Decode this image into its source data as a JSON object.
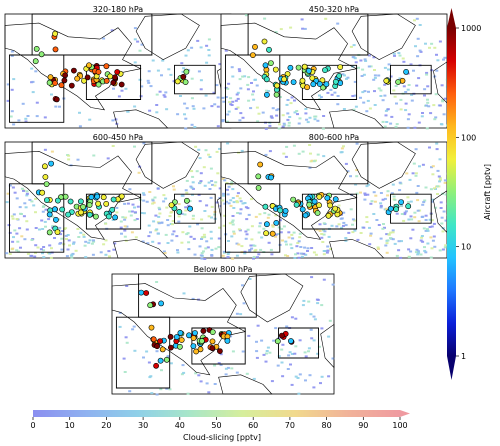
{
  "chart_data": {
    "type": "scatter",
    "panels": [
      {
        "title": "320-180 hPa"
      },
      {
        "title": "450-320 hPa"
      },
      {
        "title": "600-450 hPa"
      },
      {
        "title": "800-600 hPa"
      },
      {
        "title": "Below 800 hPa"
      }
    ],
    "aircraft_colorbar": {
      "label": "Aircraft [pptv]",
      "scale": "log",
      "range": [
        1,
        1000
      ],
      "ticks": [
        "1",
        "10",
        "100",
        "1000"
      ],
      "orientation": "vertical",
      "extend": "both"
    },
    "cloud_colorbar": {
      "label": "Cloud-slicing [pptv]",
      "scale": "linear",
      "range": [
        0,
        100
      ],
      "ticks": [
        "0",
        "10",
        "20",
        "30",
        "40",
        "50",
        "60",
        "70",
        "80",
        "90",
        "100"
      ],
      "orientation": "horizontal",
      "extend": "max"
    },
    "colors": {
      "aircraft_cmap": [
        "#08006e",
        "#0b1fd9",
        "#1f77ff",
        "#22c3ff",
        "#3fe6c6",
        "#8ff07a",
        "#f2f03a",
        "#ffb81d",
        "#ff5f0d",
        "#d60000",
        "#7a0000"
      ],
      "cloud_cmap": [
        "#8b8ff0",
        "#8fb1f0",
        "#8fd0e8",
        "#a8e6c8",
        "#d6ee9c",
        "#f1d98d",
        "#f1b399",
        "#ef9aa0"
      ],
      "land": "#ffffff",
      "coastline": "#000000"
    }
  }
}
